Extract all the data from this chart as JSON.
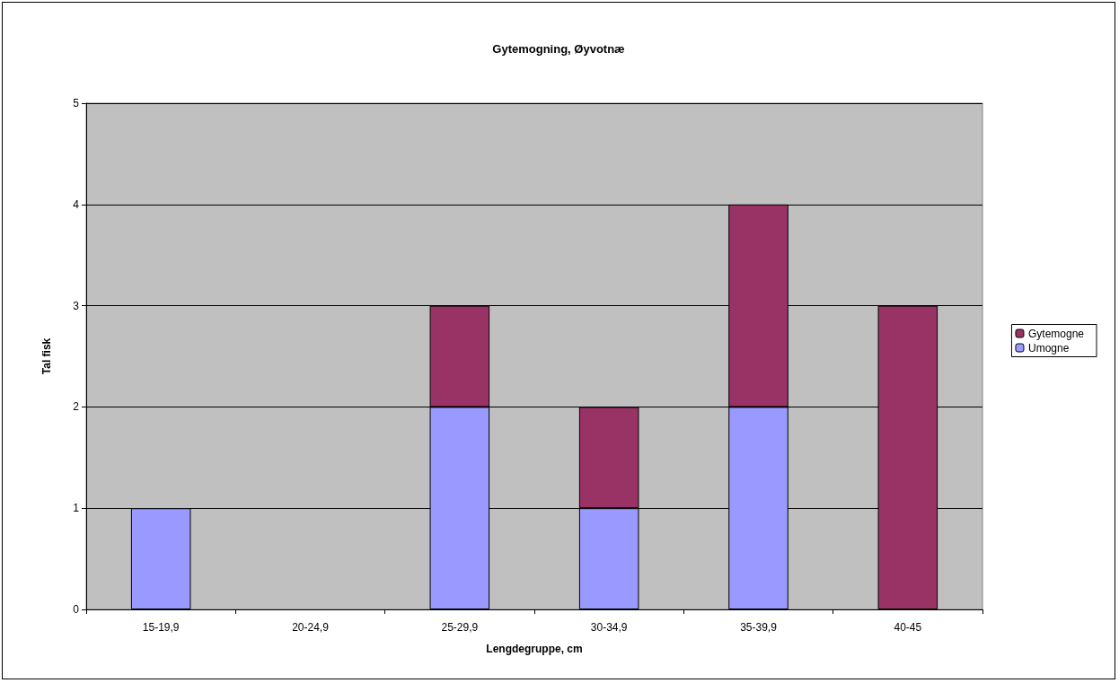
{
  "chart_data": {
    "type": "bar",
    "title": "Gytemogning, Øyvotnæ",
    "xlabel": "Lengdegruppe, cm",
    "ylabel": "Tal fisk",
    "categories": [
      "15-19,9",
      "20-24,9",
      "25-29,9",
      "30-34,9",
      "35-39,9",
      "40-45"
    ],
    "stacked": true,
    "series": [
      {
        "name": "Umogne",
        "color": "#9999ff",
        "values": [
          1,
          0,
          2,
          1,
          2,
          0
        ]
      },
      {
        "name": "Gytemogne",
        "color": "#993366",
        "values": [
          0,
          0,
          1,
          1,
          2,
          3
        ]
      }
    ],
    "ylim": [
      0,
      5
    ],
    "yticks": [
      0,
      1,
      2,
      3,
      4,
      5
    ],
    "grid": "y",
    "legend": "right"
  }
}
